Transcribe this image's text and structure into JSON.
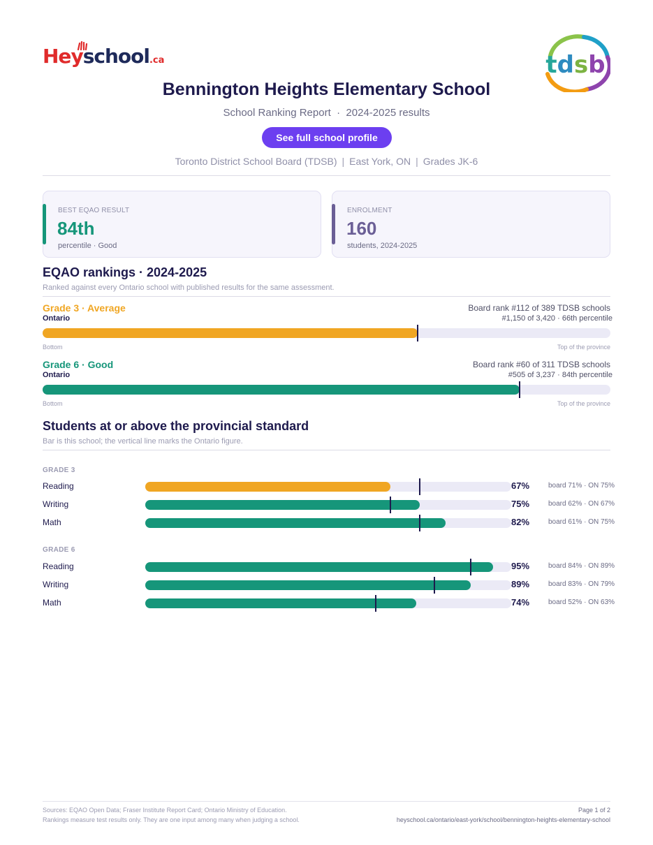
{
  "branding": {
    "heyschool_he": "He",
    "heyschool_y": "y",
    "heyschool_school": "school",
    "heyschool_ca": ".ca",
    "tdsb_logo_text": "tdsb"
  },
  "header": {
    "school_name": "Bennington Heights Elementary School",
    "report_title": "School Ranking Report",
    "results_year": "2024-2025 results",
    "profile_button": "See full school profile",
    "board": "Toronto District School Board (TDSB)",
    "location": "East York, ON",
    "grades": "Grades JK-6"
  },
  "cards": [
    {
      "label": "BEST EQAO RESULT",
      "value": "84th",
      "sub": "percentile  ·  Good",
      "accent": "#16967a",
      "value_color": "#16967a"
    },
    {
      "label": "ENROLMENT",
      "value": "160",
      "sub": "students, 2024-2025",
      "accent": "#6b5f96",
      "value_color": "#6b5f96"
    }
  ],
  "rankings": {
    "title": "EQAO rankings  ·  2024-2025",
    "note": "Ranked against every Ontario school with published results for the same assessment.",
    "items": [
      {
        "grade_label": "Grade 3  ·  Average",
        "region": "Ontario",
        "board_rank": "Board rank #112 of 389 TDSB schools",
        "province_rank": "#1,150 of 3,420  ·  66th percentile",
        "percentile": 66,
        "color": "#f0a623",
        "bottom_label": "Bottom",
        "top_label": "Top of the province"
      },
      {
        "grade_label": "Grade 6  ·  Good",
        "region": "Ontario",
        "board_rank": "Board rank #60 of 311 TDSB schools",
        "province_rank": "#505 of 3,237  ·  84th percentile",
        "percentile": 84,
        "color": "#16967a",
        "bottom_label": "Bottom",
        "top_label": "Top of the province"
      }
    ]
  },
  "standards": {
    "title": "Students at or above the provincial standard",
    "note": "Bar is this school; the vertical line marks the Ontario figure.",
    "groups": [
      {
        "heading": "GRADE 3",
        "rows": [
          {
            "subject": "Reading",
            "school": 67,
            "pct": "67%",
            "compare": "board 71%  ·  ON 75%",
            "ontario": 75,
            "color": "#f0a623"
          },
          {
            "subject": "Writing",
            "school": 75,
            "pct": "75%",
            "compare": "board 62%  ·  ON 67%",
            "ontario": 67,
            "color": "#16967a"
          },
          {
            "subject": "Math",
            "school": 82,
            "pct": "82%",
            "compare": "board 61%  ·  ON 75%",
            "ontario": 75,
            "color": "#16967a"
          }
        ]
      },
      {
        "heading": "GRADE 6",
        "rows": [
          {
            "subject": "Reading",
            "school": 95,
            "pct": "95%",
            "compare": "board 84%  ·  ON 89%",
            "ontario": 89,
            "color": "#16967a"
          },
          {
            "subject": "Writing",
            "school": 89,
            "pct": "89%",
            "compare": "board 83%  ·  ON 79%",
            "ontario": 79,
            "color": "#16967a"
          },
          {
            "subject": "Math",
            "school": 74,
            "pct": "74%",
            "compare": "board 52%  ·  ON 63%",
            "ontario": 63,
            "color": "#16967a"
          }
        ]
      }
    ]
  },
  "footer": {
    "sources": "Sources: EQAO Open Data; Fraser Institute Report Card; Ontario Ministry of Education.",
    "disclaimer": "Rankings measure test results only. They are one input among many when judging a school.",
    "page": "Page 1 of 2",
    "url": "heyschool.ca/ontario/east-york/school/bennington-heights-elementary-school"
  }
}
